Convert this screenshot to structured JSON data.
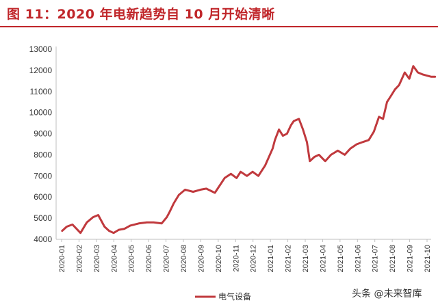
{
  "header": {
    "title": "图  11：2020 年电新趋势自 10 月开始清晰"
  },
  "watermark": "头条 @未来智库",
  "colors": {
    "accent": "#c0262a",
    "series": "#c0393d",
    "axis": "#bfbfbf"
  },
  "chart_data": {
    "type": "line",
    "title": "",
    "xlabel": "",
    "ylabel": "",
    "ylim": [
      4000,
      13000
    ],
    "yticks": [
      4000,
      5000,
      6000,
      7000,
      8000,
      9000,
      10000,
      11000,
      12000,
      13000
    ],
    "x_tick_labels": [
      "2020-01",
      "2020-02",
      "2020-03",
      "2020-04",
      "2020-05",
      "2020-06",
      "2020-07",
      "2020-08",
      "2020-09",
      "2020-10",
      "2020-11",
      "2020-12",
      "2021-01",
      "2021-02",
      "2021-03",
      "2021-04",
      "2021-05",
      "2021-06",
      "2021-07",
      "2021-08",
      "2021-09",
      "2021-10"
    ],
    "grid": false,
    "legend_position": "bottom-center",
    "series": [
      {
        "name": "电气设备",
        "x": [
          "2020-01-02",
          "2020-01-10",
          "2020-01-20",
          "2020-02-03",
          "2020-02-14",
          "2020-02-25",
          "2020-03-05",
          "2020-03-16",
          "2020-03-24",
          "2020-04-01",
          "2020-04-10",
          "2020-04-20",
          "2020-04-30",
          "2020-05-15",
          "2020-05-29",
          "2020-06-10",
          "2020-06-24",
          "2020-07-03",
          "2020-07-08",
          "2020-07-15",
          "2020-07-24",
          "2020-08-04",
          "2020-08-18",
          "2020-08-31",
          "2020-09-10",
          "2020-09-25",
          "2020-10-12",
          "2020-10-23",
          "2020-11-02",
          "2020-11-09",
          "2020-11-20",
          "2020-11-30",
          "2020-12-10",
          "2020-12-22",
          "2021-01-04",
          "2021-01-08",
          "2021-01-15",
          "2021-01-22",
          "2021-01-29",
          "2021-02-05",
          "2021-02-10",
          "2021-02-19",
          "2021-02-26",
          "2021-03-05",
          "2021-03-10",
          "2021-03-18",
          "2021-03-26",
          "2021-04-06",
          "2021-04-16",
          "2021-04-28",
          "2021-05-10",
          "2021-05-20",
          "2021-05-31",
          "2021-06-10",
          "2021-06-21",
          "2021-06-30",
          "2021-07-09",
          "2021-07-16",
          "2021-07-23",
          "2021-07-30",
          "2021-08-06",
          "2021-08-13",
          "2021-08-23",
          "2021-08-31",
          "2021-09-07",
          "2021-09-15",
          "2021-09-24",
          "2021-10-08",
          "2021-10-15"
        ],
        "y": [
          4400,
          4600,
          4700,
          4300,
          4800,
          5050,
          5150,
          4600,
          4400,
          4300,
          4450,
          4500,
          4650,
          4750,
          4800,
          4800,
          4750,
          5050,
          5300,
          5700,
          6100,
          6350,
          6250,
          6350,
          6400,
          6200,
          6900,
          7100,
          6900,
          7200,
          7000,
          7200,
          7000,
          7500,
          8300,
          8700,
          9200,
          8900,
          9000,
          9400,
          9600,
          9700,
          9200,
          8600,
          7700,
          7900,
          8000,
          7700,
          8000,
          8200,
          8000,
          8300,
          8500,
          8600,
          8700,
          9100,
          9800,
          9700,
          10500,
          10800,
          11100,
          11300,
          11900,
          11600,
          12200,
          11900,
          11800,
          11700,
          11700
        ]
      }
    ]
  }
}
